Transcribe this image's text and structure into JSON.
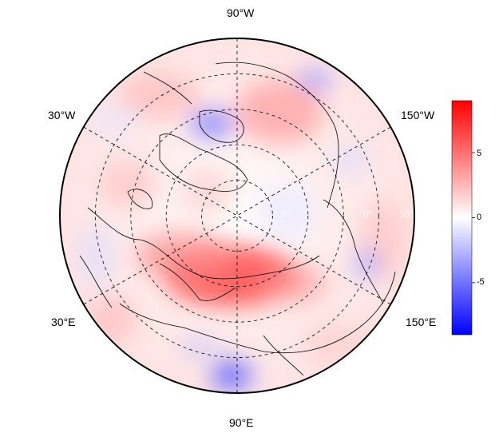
{
  "map": {
    "projection": "north-polar-stereographic",
    "colormap": [
      "#0000ff",
      "#ffffff",
      "#ff0000"
    ],
    "value_range": [
      -9,
      9
    ],
    "longitude_labels": {
      "top": "90°W",
      "upper_left": "30°W",
      "upper_right": "150°W",
      "lower_left": "30°E",
      "lower_right": "150°E",
      "bottom": "90°E"
    },
    "inner_faint_labels": [
      "0°",
      "0°",
      "50°"
    ]
  },
  "colorbar": {
    "ticks": [
      "5",
      "0",
      "-5"
    ],
    "tick_values": [
      5,
      0,
      -5
    ]
  }
}
